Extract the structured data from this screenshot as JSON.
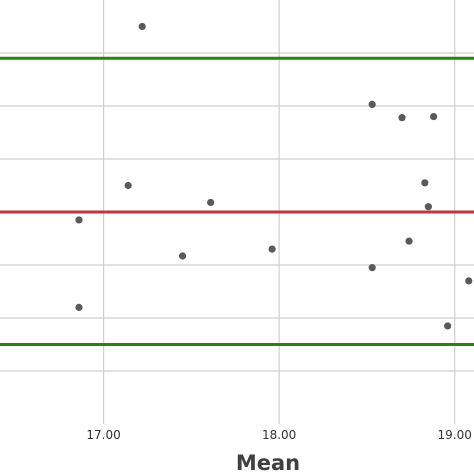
{
  "chart_data": {
    "type": "scatter",
    "xlabel": "Mean",
    "xlim": [
      16.41,
      19.11
    ],
    "ylim": [
      -1.0,
      7.0
    ],
    "x_ticks": [
      17.0,
      18.0,
      19.0
    ],
    "x_tick_labels": [
      "17.00",
      "18.00",
      "19.00"
    ],
    "y_grid": [
      0,
      1,
      2,
      3,
      4,
      5,
      6
    ],
    "reference_lines": [
      {
        "y": 0.5,
        "color": "#2e7d1f"
      },
      {
        "y": 3.0,
        "color": "#c0343b"
      },
      {
        "y": 5.9,
        "color": "#2e7d1f"
      }
    ],
    "point_color": "#5a5a5a",
    "points": [
      {
        "x": 16.86,
        "y": 1.2
      },
      {
        "x": 16.86,
        "y": 2.85
      },
      {
        "x": 17.14,
        "y": 3.5
      },
      {
        "x": 17.22,
        "y": 6.5
      },
      {
        "x": 17.45,
        "y": 2.17
      },
      {
        "x": 17.61,
        "y": 3.18
      },
      {
        "x": 17.96,
        "y": 2.3
      },
      {
        "x": 18.53,
        "y": 1.95
      },
      {
        "x": 18.53,
        "y": 5.03
      },
      {
        "x": 18.7,
        "y": 4.78
      },
      {
        "x": 18.74,
        "y": 2.45
      },
      {
        "x": 18.83,
        "y": 3.55
      },
      {
        "x": 18.85,
        "y": 3.1
      },
      {
        "x": 18.88,
        "y": 4.8
      },
      {
        "x": 18.96,
        "y": 0.85
      },
      {
        "x": 19.08,
        "y": 1.7
      }
    ]
  }
}
